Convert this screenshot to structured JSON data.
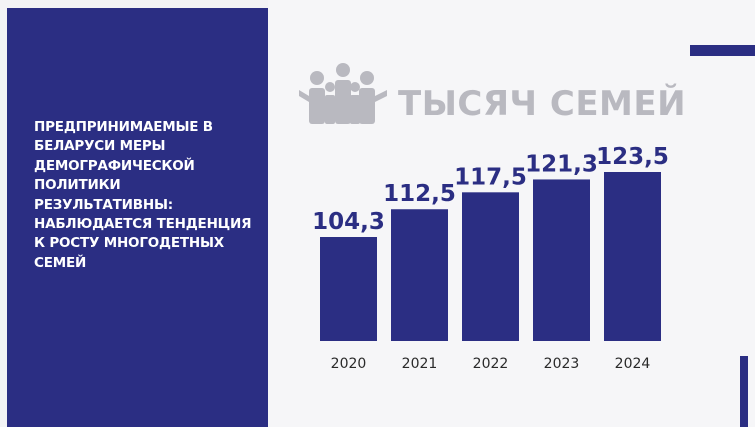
{
  "panel": {
    "text": "ПРЕДПРИНИМАЕМЫЕ В БЕЛАРУСИ МЕРЫ ДЕМОГРАФИЧЕСКОЙ ПОЛИТИКИ РЕЗУЛЬТАТИВНЫ: НАБЛЮДАЕТСЯ ТЕНДЕНЦИЯ К РОСТУ МНОГОДЕТНЫХ СЕМЕЙ"
  },
  "icons": {
    "family": "family-icon"
  },
  "colors": {
    "brand": "#2b2e83",
    "heading": "#b9b9c0",
    "background": "#f6f6f8"
  },
  "chart_data": {
    "type": "bar",
    "title": "ТЫСЯЧ СЕМЕЙ",
    "categories": [
      "2020",
      "2021",
      "2022",
      "2023",
      "2024"
    ],
    "values": [
      104.3,
      112.5,
      117.5,
      121.3,
      123.5
    ],
    "value_labels": [
      "104,3",
      "112,5",
      "117,5",
      "121,3",
      "123,5"
    ],
    "xlabel": "",
    "ylabel": "",
    "grid": false
  }
}
